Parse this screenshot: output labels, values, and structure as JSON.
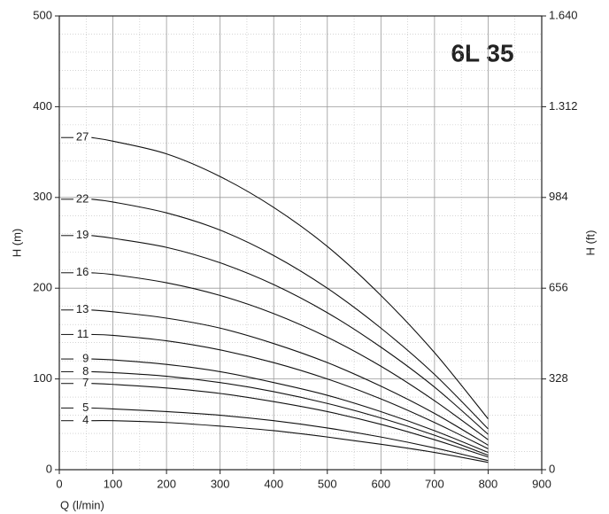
{
  "chart_data": {
    "type": "line",
    "title": "6L 35",
    "x_label": "Q (l/min)",
    "y_label": "H (m)",
    "y2_label": "H (ft)",
    "x": [
      60,
      100,
      200,
      300,
      400,
      500,
      600,
      700,
      800
    ],
    "series": [
      {
        "name": "27",
        "color": "#111111",
        "values": [
          366,
          362,
          348,
          323,
          289,
          246,
          192,
          129,
          56
        ]
      },
      {
        "name": "22",
        "color": "#111111",
        "values": [
          298,
          295,
          283,
          264,
          236,
          200,
          156,
          105,
          45
        ]
      },
      {
        "name": "19",
        "color": "#111111",
        "values": [
          258,
          255,
          245,
          228,
          204,
          173,
          135,
          91,
          39
        ]
      },
      {
        "name": "16",
        "color": "#111111",
        "values": [
          217,
          215,
          206,
          192,
          172,
          146,
          114,
          76,
          33
        ]
      },
      {
        "name": "13",
        "color": "#111111",
        "values": [
          176,
          174,
          167,
          156,
          139,
          118,
          92,
          62,
          27
        ]
      },
      {
        "name": "11",
        "color": "#111111",
        "values": [
          149,
          148,
          142,
          132,
          118,
          100,
          78,
          52,
          23
        ]
      },
      {
        "name": "9",
        "color": "#111111",
        "values": [
          122,
          121,
          116,
          108,
          96,
          82,
          64,
          43,
          19
        ]
      },
      {
        "name": "8",
        "color": "#111111",
        "values": [
          108,
          107,
          103,
          96,
          86,
          73,
          57,
          38,
          16
        ]
      },
      {
        "name": "7",
        "color": "#111111",
        "values": [
          95,
          94,
          90,
          84,
          75,
          64,
          50,
          33,
          14
        ]
      },
      {
        "name": "5",
        "color": "#111111",
        "values": [
          68,
          67,
          64,
          60,
          54,
          46,
          36,
          24,
          10
        ]
      },
      {
        "name": "4",
        "color": "#111111",
        "values": [
          54,
          54,
          52,
          48,
          43,
          36,
          28,
          19,
          8
        ]
      }
    ],
    "xlim": [
      0,
      900
    ],
    "xticks": [
      0,
      100,
      200,
      300,
      400,
      500,
      600,
      700,
      800,
      900
    ],
    "ylim": [
      0,
      500
    ],
    "yticks": [
      0,
      100,
      200,
      300,
      400,
      500
    ],
    "y2lim": [
      0,
      1640
    ],
    "y2ticks": [
      0,
      328,
      656,
      984,
      {
        "value": 1312,
        "label": "1.312"
      },
      {
        "value": 1640,
        "label": "1.640"
      }
    ],
    "grid": true
  }
}
